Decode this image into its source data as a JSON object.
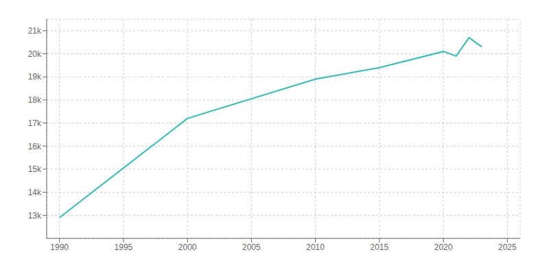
{
  "chart_data": {
    "type": "line",
    "x": [
      1990,
      2000,
      2010,
      2015,
      2020,
      2021,
      2022,
      2023
    ],
    "values": [
      12900,
      17200,
      18900,
      19400,
      20100,
      19900,
      20700,
      20300
    ],
    "color": "#2BBFBF",
    "xlim": [
      1989,
      2026
    ],
    "ylim": [
      12000,
      21500
    ],
    "xticks": [
      1990,
      1995,
      2000,
      2005,
      2010,
      2015,
      2020,
      2025
    ],
    "yticks": [
      {
        "value": 13000,
        "label": "13k"
      },
      {
        "value": 14000,
        "label": "14k"
      },
      {
        "value": 15000,
        "label": "15k"
      },
      {
        "value": 16000,
        "label": "16k"
      },
      {
        "value": 17000,
        "label": "17k"
      },
      {
        "value": 18000,
        "label": "18k"
      },
      {
        "value": 19000,
        "label": "19k"
      },
      {
        "value": 20000,
        "label": "20k"
      },
      {
        "value": 21000,
        "label": "21k"
      }
    ],
    "grid": true
  }
}
